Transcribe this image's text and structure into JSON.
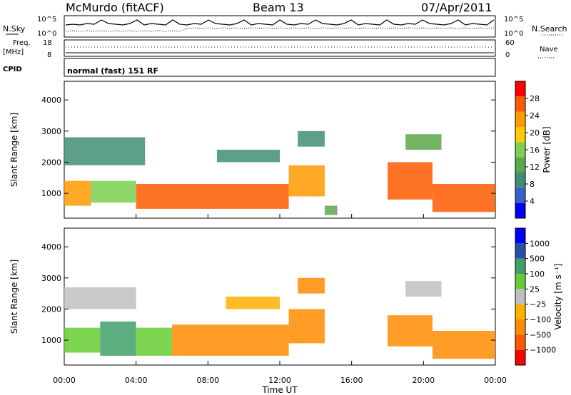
{
  "header": {
    "station": "McMurdo (fitACF)",
    "beam": "Beam 13",
    "date": "07/Apr/2011"
  },
  "top_panels": {
    "nsky_label": "N.Sky",
    "nsearch_label": "N.Search",
    "noise_tick_top": "10^5",
    "noise_tick_bottom": "10^0",
    "noise_tick_top_right": "10^5",
    "noise_tick_bottom_right": "10^0",
    "freq_label_1": "Freq.",
    "freq_label_2": "[MHz]",
    "freq_tick_top": "18",
    "freq_tick_bottom": "8",
    "nave_label": "Nave",
    "nave_tick_top": "60",
    "nave_tick_bottom": "0",
    "cpid_label": "CPID",
    "cpid_text": "normal (fast) 151 RF"
  },
  "colors": {
    "power_scale": [
      "#0000ff",
      "#3a5fc8",
      "#3f8f78",
      "#5aa84a",
      "#7dd050",
      "#ffcc00",
      "#ff9a00",
      "#ff5a00",
      "#ff0000"
    ],
    "velocity_scale": [
      "#ff0000",
      "#ff5a00",
      "#ff8c00",
      "#ffb000",
      "#c0c0c0",
      "#66cc33",
      "#3f9f6a",
      "#2a4fa8",
      "#0000ff"
    ]
  },
  "chart_data": [
    {
      "type": "heatmap",
      "panel": "power",
      "ylabel": "Slant Range [km]",
      "yticks": [
        "1000",
        "2000",
        "3000",
        "4000"
      ],
      "ylim": [
        200,
        4600
      ],
      "colorbar_label": "Power [dB]",
      "colorbar_ticks": [
        "4",
        "8",
        "12",
        "16",
        "20",
        "24",
        "28"
      ],
      "colorbar_range": [
        0,
        32
      ],
      "x": [
        "00:00",
        "04:00",
        "08:00",
        "12:00",
        "16:00",
        "20:00",
        "00:00"
      ],
      "bands": [
        {
          "t_start": 0.0,
          "t_end": 1.5,
          "range_low": 600,
          "range_high": 1400,
          "value": 24
        },
        {
          "t_start": 1.5,
          "t_end": 4.0,
          "range_low": 700,
          "range_high": 1400,
          "value": 16
        },
        {
          "t_start": 4.0,
          "t_end": 12.5,
          "range_low": 500,
          "range_high": 1300,
          "value": 28
        },
        {
          "t_start": 12.5,
          "t_end": 14.5,
          "range_low": 900,
          "range_high": 1900,
          "value": 24
        },
        {
          "t_start": 14.5,
          "t_end": 15.2,
          "range_low": 300,
          "range_high": 600,
          "value": 12
        },
        {
          "t_start": 18.0,
          "t_end": 20.5,
          "range_low": 800,
          "range_high": 2000,
          "value": 28
        },
        {
          "t_start": 20.5,
          "t_end": 24.0,
          "range_low": 400,
          "range_high": 1300,
          "value": 28
        },
        {
          "t_start": 0.0,
          "t_end": 4.5,
          "range_low": 1900,
          "range_high": 2800,
          "value": 8
        },
        {
          "t_start": 8.5,
          "t_end": 12.0,
          "range_low": 2000,
          "range_high": 2400,
          "value": 8
        },
        {
          "t_start": 13.0,
          "t_end": 14.5,
          "range_low": 2500,
          "range_high": 3000,
          "value": 8
        },
        {
          "t_start": 19.0,
          "t_end": 21.0,
          "range_low": 2400,
          "range_high": 2900,
          "value": 12
        }
      ]
    },
    {
      "type": "heatmap",
      "panel": "velocity",
      "ylabel": "Slant Range [km]",
      "yticks": [
        "1000",
        "2000",
        "3000",
        "4000"
      ],
      "ylim": [
        200,
        4600
      ],
      "colorbar_label": "Velocity [m s⁻¹]",
      "colorbar_ticks": [
        "1000",
        "500",
        "100",
        "25",
        "−25",
        "−100",
        "−500",
        "−1000"
      ],
      "xlabel": "Time UT",
      "x": [
        "00:00",
        "04:00",
        "08:00",
        "12:00",
        "16:00",
        "20:00",
        "00:00"
      ],
      "bands": [
        {
          "t_start": 0.0,
          "t_end": 2.0,
          "range_low": 600,
          "range_high": 1400,
          "value": 60
        },
        {
          "t_start": 2.0,
          "t_end": 4.0,
          "range_low": 500,
          "range_high": 1600,
          "value": 300
        },
        {
          "t_start": 4.0,
          "t_end": 6.0,
          "range_low": 500,
          "range_high": 1400,
          "value": 80
        },
        {
          "t_start": 6.0,
          "t_end": 12.5,
          "range_low": 500,
          "range_high": 1500,
          "value": -150
        },
        {
          "t_start": 12.5,
          "t_end": 14.5,
          "range_low": 900,
          "range_high": 2000,
          "value": -120
        },
        {
          "t_start": 18.0,
          "t_end": 20.5,
          "range_low": 800,
          "range_high": 1800,
          "value": -300
        },
        {
          "t_start": 20.5,
          "t_end": 24.0,
          "range_low": 400,
          "range_high": 1300,
          "value": -150
        },
        {
          "t_start": 0.0,
          "t_end": 4.0,
          "range_low": 2000,
          "range_high": 2700,
          "value": 0
        },
        {
          "t_start": 9.0,
          "t_end": 12.0,
          "range_low": 2000,
          "range_high": 2400,
          "value": -60
        },
        {
          "t_start": 13.0,
          "t_end": 14.5,
          "range_low": 2500,
          "range_high": 3000,
          "value": -110
        },
        {
          "t_start": 19.0,
          "t_end": 21.0,
          "range_low": 2400,
          "range_high": 2900,
          "value": 0
        }
      ]
    }
  ]
}
